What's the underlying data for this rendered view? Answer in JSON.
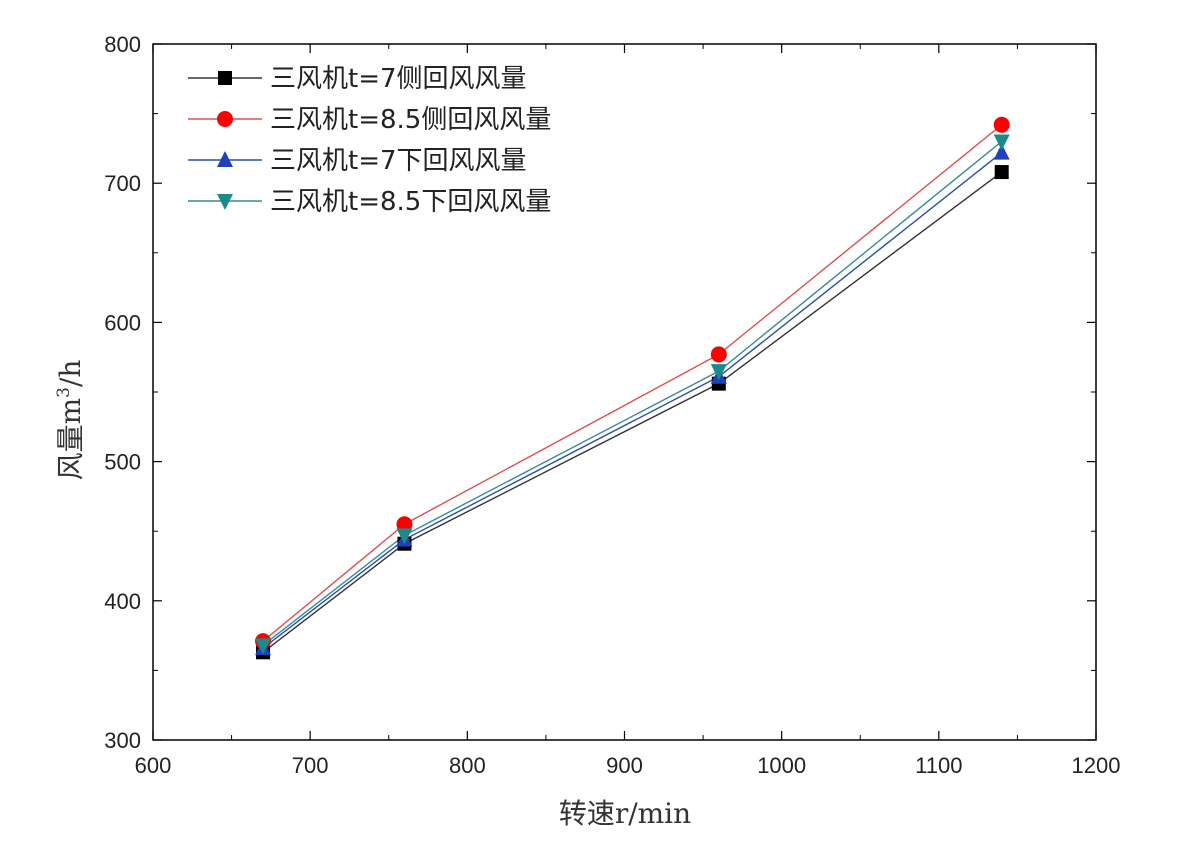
{
  "chart_data": {
    "type": "line",
    "title": "",
    "xlabel": "转速r/min",
    "ylabel_main": "风量m",
    "ylabel_sup": "3",
    "ylabel_tail": "/h",
    "xlim": [
      600,
      1200
    ],
    "ylim": [
      300,
      800
    ],
    "xticks": [
      600,
      700,
      800,
      900,
      1000,
      1100,
      1200
    ],
    "yticks": [
      300,
      400,
      500,
      600,
      700,
      800
    ],
    "grid": false,
    "legend_position": "top-left",
    "x": [
      670,
      760,
      960,
      1140
    ],
    "series": [
      {
        "name": "三风机t=7侧回风风量",
        "marker": "square",
        "color": "#000000",
        "line_color": "#333333",
        "values": [
          363,
          441,
          556,
          708
        ]
      },
      {
        "name": "三风机t=8.5侧回风风量",
        "marker": "circle",
        "color": "#ff0000",
        "line_color": "#e05050",
        "values": [
          371,
          455,
          577,
          742
        ]
      },
      {
        "name": "三风机t=7下回风风量",
        "marker": "triangle-up",
        "color": "#1f3fbf",
        "line_color": "#2a4fa8",
        "values": [
          366,
          444,
          561,
          722
        ]
      },
      {
        "name": "三风机t=8.5下回风风量",
        "marker": "triangle-down",
        "color": "#1a8a8a",
        "line_color": "#3a8a9a",
        "values": [
          368,
          447,
          565,
          730
        ]
      }
    ]
  }
}
